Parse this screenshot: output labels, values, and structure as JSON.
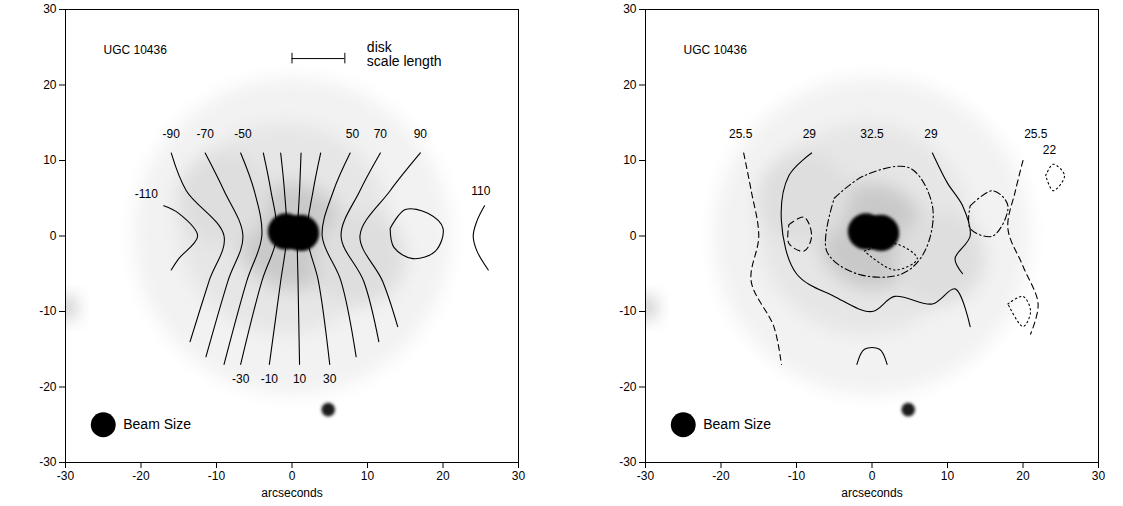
{
  "chart_data": [
    {
      "type": "contour",
      "title": "UGC 10436",
      "xlabel": "arcseconds",
      "xlim": [
        -30,
        30
      ],
      "ylim": [
        -30,
        30
      ],
      "xticks": [
        -30,
        -20,
        -10,
        0,
        10,
        20,
        30
      ],
      "yticks": [
        -30,
        -20,
        -10,
        0,
        10,
        20,
        30
      ],
      "line_style": "solid",
      "image_diffuse": [
        {
          "x": 0,
          "y": 0,
          "radius": 21,
          "intensity": 0.1
        },
        {
          "x": -1,
          "y": 1,
          "radius": 14,
          "intensity": 0.18
        },
        {
          "x": -9,
          "y": 5,
          "radius": 6,
          "intensity": 0.22
        },
        {
          "x": 9,
          "y": -3,
          "radius": 6,
          "intensity": 0.22
        },
        {
          "x": 0,
          "y": 0,
          "radius": 7,
          "intensity": 0.32
        },
        {
          "x": -30,
          "y": -9.5,
          "radius": 1.5,
          "intensity": 0.35
        }
      ],
      "image_compact": [
        {
          "x": -0.8,
          "y": 0.6,
          "radius": 2.4,
          "intensity": 1
        },
        {
          "x": 1.2,
          "y": 0.4,
          "radius": 2.4,
          "intensity": 1
        },
        {
          "x": 4.8,
          "y": -23,
          "radius": 0.9,
          "intensity": 0.9
        }
      ],
      "contours": [
        {
          "level": -110,
          "x": [
            -17,
            -15,
            -12.5,
            -15,
            -16
          ],
          "y": [
            4,
            3,
            0,
            -3,
            -4.5
          ]
        },
        {
          "level": -90,
          "x": [
            -16,
            -14,
            -9,
            -11,
            -13.5
          ],
          "y": [
            11,
            6,
            0,
            -6,
            -14
          ]
        },
        {
          "level": -70,
          "x": [
            -11.5,
            -9,
            -6.5,
            -8.5,
            -11.4
          ],
          "y": [
            11,
            6,
            0,
            -6,
            -16
          ]
        },
        {
          "level": -50,
          "x": [
            -6.8,
            -5,
            -4,
            -6,
            -9
          ],
          "y": [
            11,
            6,
            0,
            -6,
            -17
          ]
        },
        {
          "level": -30,
          "x": [
            -3.8,
            -2.8,
            -2,
            -4,
            -6.8
          ],
          "y": [
            11,
            6,
            0,
            -6,
            -17
          ]
        },
        {
          "level": -10,
          "x": [
            -1.5,
            -1,
            -0.7,
            -1.5,
            -3
          ],
          "y": [
            11,
            6,
            0,
            -6,
            -17
          ]
        },
        {
          "level": 10,
          "x": [
            1.2,
            1,
            0.7,
            0.8,
            1
          ],
          "y": [
            11,
            6,
            0,
            -6,
            -17
          ]
        },
        {
          "level": 30,
          "x": [
            3.8,
            2.8,
            2,
            3.5,
            5
          ],
          "y": [
            11,
            6,
            0,
            -6,
            -17
          ]
        },
        {
          "level": 50,
          "x": [
            7.7,
            5.5,
            4,
            6.5,
            8.5
          ],
          "y": [
            11,
            6,
            0,
            -6,
            -16
          ]
        },
        {
          "level": 70,
          "x": [
            11.7,
            9,
            6.5,
            9.5,
            11.5
          ],
          "y": [
            11,
            6,
            0,
            -6,
            -14
          ]
        },
        {
          "level": 90,
          "x": [
            17,
            13,
            9,
            12,
            14
          ],
          "y": [
            11,
            6,
            0,
            -6,
            -12
          ]
        },
        {
          "level": 110,
          "x": [
            13,
            15,
            18,
            20,
            19,
            16,
            13.5,
            13
          ],
          "y": [
            1,
            3.5,
            3,
            1,
            -2,
            -3,
            -1.5,
            1
          ]
        },
        {
          "level": 110,
          "x": [
            25.5,
            24.5,
            24,
            24.5,
            26
          ],
          "y": [
            4,
            2,
            0,
            -2,
            -4.5
          ]
        }
      ],
      "contour_labels": [
        {
          "level": -90,
          "x": -16,
          "y": 13.5
        },
        {
          "level": -70,
          "x": -11.5,
          "y": 13.5
        },
        {
          "level": -50,
          "x": -6.5,
          "y": 13.5
        },
        {
          "level": 50,
          "x": 8,
          "y": 13.5
        },
        {
          "level": 70,
          "x": 11.7,
          "y": 13.5
        },
        {
          "level": 90,
          "x": 17,
          "y": 13.5
        },
        {
          "level": -110,
          "x": -19.3,
          "y": 5.5
        },
        {
          "level": 110,
          "x": 25,
          "y": 6
        },
        {
          "level": -30,
          "x": -6.8,
          "y": -19
        },
        {
          "level": -10,
          "x": -3,
          "y": -19
        },
        {
          "level": 10,
          "x": 1,
          "y": -19
        },
        {
          "level": 30,
          "x": 5,
          "y": -19
        }
      ],
      "scale_bar": {
        "x": [
          0,
          7
        ],
        "y": 23.5,
        "label": "disk\nscale length"
      },
      "beam": {
        "x": -25,
        "y": -25,
        "diameter": 3.3,
        "label": "Beam Size"
      }
    },
    {
      "type": "contour",
      "title": "UGC 10436",
      "xlabel": "arcseconds",
      "xlim": [
        -30,
        30
      ],
      "ylim": [
        -30,
        30
      ],
      "xticks": [
        -30,
        -20,
        -10,
        0,
        10,
        20,
        30
      ],
      "yticks": [
        -30,
        -20,
        -10,
        0,
        10,
        20,
        30
      ],
      "image_diffuse": [
        {
          "x": 0,
          "y": 0,
          "radius": 21,
          "intensity": 0.1
        },
        {
          "x": -1,
          "y": 1,
          "radius": 14,
          "intensity": 0.18
        },
        {
          "x": -9,
          "y": 5,
          "radius": 6,
          "intensity": 0.22
        },
        {
          "x": 9,
          "y": -3,
          "radius": 6,
          "intensity": 0.22
        },
        {
          "x": 0,
          "y": 0,
          "radius": 7,
          "intensity": 0.32
        },
        {
          "x": -30,
          "y": -9.5,
          "radius": 1.5,
          "intensity": 0.35
        }
      ],
      "image_compact": [
        {
          "x": -0.8,
          "y": 0.6,
          "radius": 2.4,
          "intensity": 1
        },
        {
          "x": 1.2,
          "y": 0.4,
          "radius": 2.4,
          "intensity": 1
        },
        {
          "x": 4.8,
          "y": -23,
          "radius": 0.9,
          "intensity": 0.9
        }
      ],
      "contours": [
        {
          "level": 25.5,
          "line_style": "dashed",
          "x": [
            -17,
            -16,
            -15,
            -16,
            -13,
            -12
          ],
          "y": [
            11,
            6,
            0,
            -6,
            -12,
            -17
          ]
        },
        {
          "level": 25.5,
          "line_style": "dashed",
          "x": [
            20,
            19,
            18,
            20,
            22,
            21
          ],
          "y": [
            10,
            6,
            1,
            -4,
            -9,
            -13
          ]
        },
        {
          "level": 25.5,
          "line_style": "dashed",
          "x": [
            -11,
            -9,
            -8,
            -9,
            -11,
            -11
          ],
          "y": [
            1.5,
            2.5,
            0,
            -2,
            -1,
            1.5
          ]
        },
        {
          "level": 29,
          "line_style": "solid",
          "x": [
            -8,
            -11,
            -12,
            -10,
            -5,
            0,
            3,
            8,
            11,
            13
          ],
          "y": [
            11,
            8,
            2,
            -5,
            -8,
            -10,
            -8,
            -9,
            -7,
            -12
          ]
        },
        {
          "level": 29,
          "line_style": "solid",
          "x": [
            8,
            10,
            12,
            13,
            11,
            12
          ],
          "y": [
            11,
            7,
            4,
            0,
            -3,
            -5
          ]
        },
        {
          "level": 29,
          "line_style": "solid",
          "x": [
            -2,
            -1,
            1,
            2
          ],
          "y": [
            -17,
            -15,
            -15,
            -17
          ]
        },
        {
          "level": 32.5,
          "line_style": "dashdot",
          "x": [
            -5,
            -1,
            5,
            8,
            7,
            4,
            -2,
            -6,
            -5
          ],
          "y": [
            5,
            8,
            9,
            4,
            -2,
            -5,
            -5,
            -2,
            5
          ]
        },
        {
          "level": 32.5,
          "line_style": "dashdot",
          "x": [
            13,
            16,
            18,
            16,
            13,
            13
          ],
          "y": [
            4,
            6,
            4,
            0,
            1,
            4
          ]
        },
        {
          "level": 22,
          "line_style": "dotted",
          "x": [
            -1,
            3,
            6,
            3,
            -1
          ],
          "y": [
            -2,
            -1,
            -3,
            -4.5,
            -2
          ]
        },
        {
          "level": 22,
          "line_style": "dotted",
          "x": [
            23,
            24,
            25.5,
            24,
            23
          ],
          "y": [
            8,
            9.5,
            8,
            6,
            8
          ]
        },
        {
          "level": 22,
          "line_style": "dotted",
          "x": [
            18,
            20,
            21,
            20,
            18
          ],
          "y": [
            -9,
            -8,
            -10,
            -12,
            -9
          ]
        }
      ],
      "contour_labels": [
        {
          "level": 25.5,
          "x": -17.4,
          "y": 13.5
        },
        {
          "level": 29,
          "x": -8.3,
          "y": 13.5
        },
        {
          "level": 32.5,
          "x": 0,
          "y": 13.5
        },
        {
          "level": 29,
          "x": 7.8,
          "y": 13.5
        },
        {
          "level": 25.5,
          "x": 21.7,
          "y": 13.5
        },
        {
          "level": 22,
          "x": 23.5,
          "y": 11.4
        }
      ],
      "beam": {
        "x": -25,
        "y": -25,
        "diameter": 3.3,
        "label": "Beam Size"
      }
    }
  ]
}
